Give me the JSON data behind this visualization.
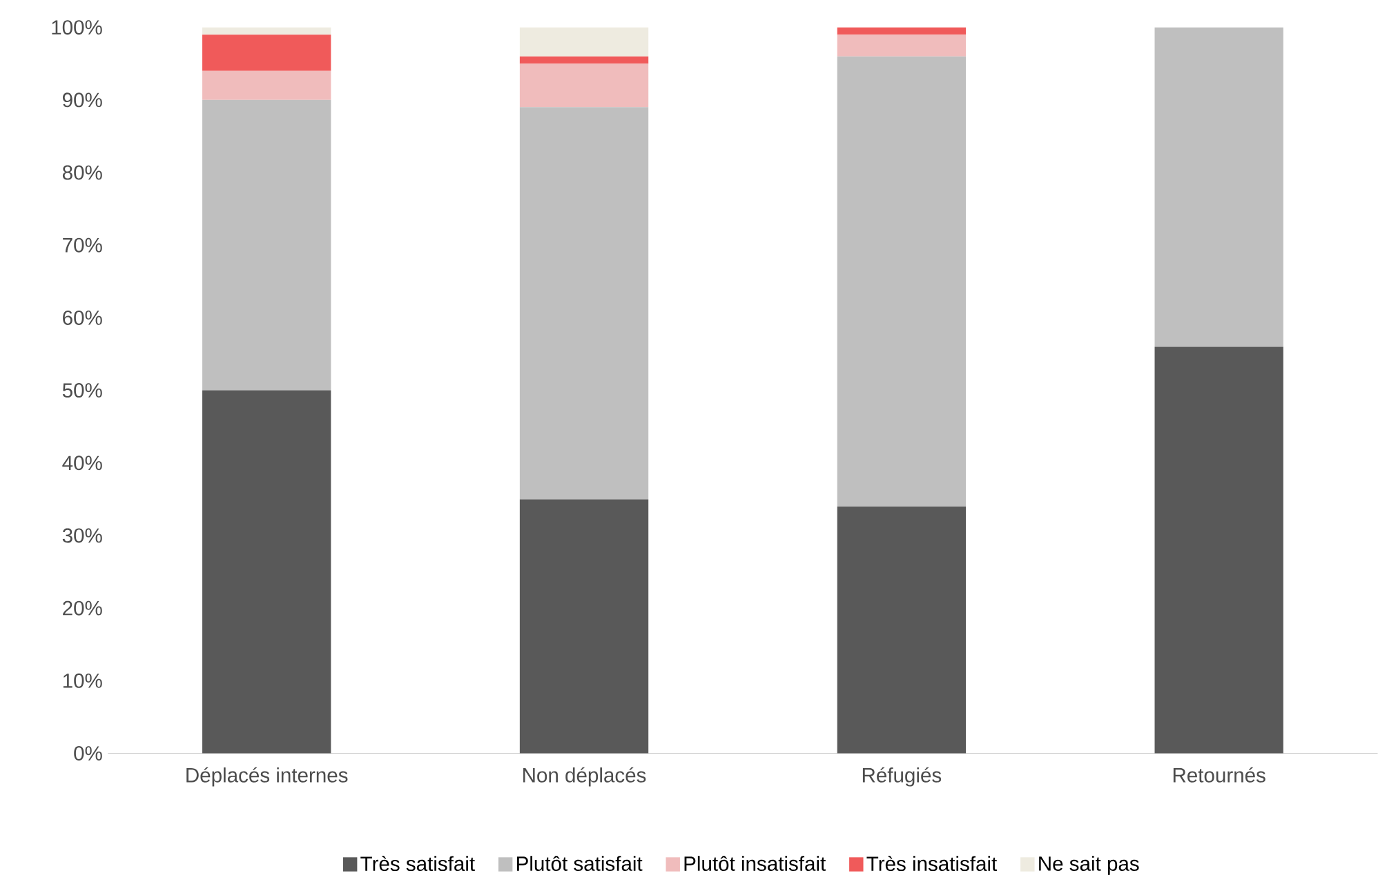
{
  "chart_data": {
    "type": "bar",
    "stacked": true,
    "legend": "bottom",
    "categories": [
      "Déplacés internes",
      "Non déplacés",
      "Réfugiés",
      "Retournés"
    ],
    "ylim": [
      0,
      100
    ],
    "yticks": [
      {
        "value": 0,
        "label": "0%"
      },
      {
        "value": 10,
        "label": "10%"
      },
      {
        "value": 20,
        "label": "20%"
      },
      {
        "value": 30,
        "label": "30%"
      },
      {
        "value": 40,
        "label": "40%"
      },
      {
        "value": 50,
        "label": "50%"
      },
      {
        "value": 60,
        "label": "60%"
      },
      {
        "value": 70,
        "label": "70%"
      },
      {
        "value": 80,
        "label": "80%"
      },
      {
        "value": 90,
        "label": "90%"
      },
      {
        "value": 100,
        "label": "100%"
      }
    ],
    "series": [
      {
        "name": "Très satisfait",
        "color": "#595959",
        "values": [
          50,
          35,
          34,
          56
        ]
      },
      {
        "name": "Plutôt satisfait",
        "color": "#bfbfbf",
        "values": [
          40,
          54,
          62,
          44
        ]
      },
      {
        "name": "Plutôt insatisfait",
        "color": "#f0bcbc",
        "values": [
          4,
          6,
          3,
          0
        ]
      },
      {
        "name": "Très insatisfait",
        "color": "#f05a5a",
        "values": [
          5,
          1,
          1,
          0
        ]
      },
      {
        "name": "Ne sait pas",
        "color": "#eeebe0",
        "values": [
          1,
          4,
          0,
          0
        ]
      }
    ]
  }
}
